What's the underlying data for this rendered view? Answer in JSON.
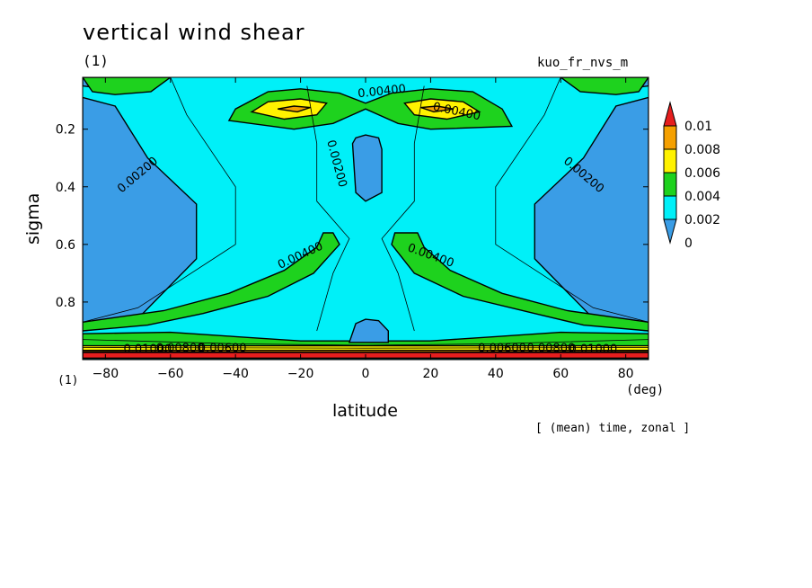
{
  "title": "vertical wind shear",
  "unit_top": "(1)",
  "experiment": "kuo_fr_nvs_m",
  "unit_bottom": "(1)",
  "x_unit": "(deg)",
  "footer_note": "[ (mean) time, zonal ]",
  "chart_data": {
    "type": "heatmap",
    "title": "vertical wind shear",
    "xlabel": "latitude",
    "ylabel": "sigma",
    "xlim": [
      -87,
      87
    ],
    "ylim": [
      1.0,
      0.02
    ],
    "x_ticks": [
      -80,
      -60,
      -40,
      -20,
      0,
      20,
      40,
      60,
      80
    ],
    "x_tick_labels": [
      "−80",
      "−60",
      "−40",
      "−20",
      "0",
      "20",
      "40",
      "60",
      "80"
    ],
    "y_ticks": [
      0.2,
      0.4,
      0.6,
      0.8
    ],
    "y_tick_labels": [
      "0.2",
      "0.4",
      "0.6",
      "0.8"
    ],
    "levels": [
      0,
      0.002,
      0.004,
      0.006,
      0.008,
      0.01
    ],
    "colorbar_labels": [
      "0.01",
      "0.008",
      "0.006",
      "0.004",
      "0.002",
      "0"
    ],
    "colors": {
      "below_0.002": "#3a9de6",
      "0.002_0.004": "#00f0f8",
      "0.004_0.006": "#1ed21e",
      "0.006_0.008": "#fff200",
      "0.008_0.01": "#f5a000",
      "above_0.01": "#e61e1e"
    },
    "contour_labels": [
      {
        "text": "0.00400",
        "lat": 5,
        "sigma": 0.07
      },
      {
        "text": "0.00400",
        "lat": 28,
        "sigma": 0.14
      },
      {
        "text": "0.00200",
        "lat": -9,
        "sigma": 0.32
      },
      {
        "text": "0.00200",
        "lat": -70,
        "sigma": 0.36
      },
      {
        "text": "0.00200",
        "lat": 67,
        "sigma": 0.36
      },
      {
        "text": "0.00400",
        "lat": -20,
        "sigma": 0.64
      },
      {
        "text": "0.00400",
        "lat": 20,
        "sigma": 0.64
      },
      {
        "text": "0.00600",
        "lat": -44,
        "sigma": 0.962
      },
      {
        "text": "0.00600",
        "lat": 42,
        "sigma": 0.962
      },
      {
        "text": "0.00800",
        "lat": -57,
        "sigma": 0.962
      },
      {
        "text": "0.00800",
        "lat": 57,
        "sigma": 0.962
      },
      {
        "text": "0.01000",
        "lat": -67,
        "sigma": 0.965
      },
      {
        "text": "0.01000",
        "lat": 70,
        "sigma": 0.965
      }
    ],
    "regions": [
      {
        "level": "0.004_0.006",
        "pts": [
          [
            -87,
            0.995
          ],
          [
            87,
            0.995
          ],
          [
            87,
            0.91
          ],
          [
            60,
            0.905
          ],
          [
            40,
            0.92
          ],
          [
            20,
            0.935
          ],
          [
            0,
            0.935
          ],
          [
            -20,
            0.935
          ],
          [
            -40,
            0.92
          ],
          [
            -60,
            0.905
          ],
          [
            -87,
            0.91
          ]
        ]
      },
      {
        "level": "0.006_0.008",
        "pts": [
          [
            -87,
            0.995
          ],
          [
            87,
            0.995
          ],
          [
            87,
            0.952
          ],
          [
            -87,
            0.952
          ]
        ]
      },
      {
        "level": "0.008_0.01",
        "pts": [
          [
            -87,
            0.995
          ],
          [
            87,
            0.995
          ],
          [
            87,
            0.968
          ],
          [
            -87,
            0.968
          ]
        ]
      },
      {
        "level": "above_0.01",
        "pts": [
          [
            -87,
            0.995
          ],
          [
            87,
            0.995
          ],
          [
            87,
            0.975
          ],
          [
            -87,
            0.975
          ]
        ]
      },
      {
        "level": "below_0.002",
        "pts": [
          [
            -87,
            0.09
          ],
          [
            -77,
            0.12
          ],
          [
            -67,
            0.3
          ],
          [
            -52,
            0.46
          ],
          [
            -52,
            0.65
          ],
          [
            -72,
            0.88
          ],
          [
            -87,
            0.9
          ]
        ]
      },
      {
        "level": "below_0.002",
        "pts": [
          [
            87,
            0.09
          ],
          [
            77,
            0.12
          ],
          [
            67,
            0.3
          ],
          [
            52,
            0.46
          ],
          [
            52,
            0.65
          ],
          [
            72,
            0.88
          ],
          [
            87,
            0.9
          ]
        ]
      },
      {
        "level": "below_0.002",
        "pts": [
          [
            -4,
            0.25
          ],
          [
            -3,
            0.23
          ],
          [
            0,
            0.22
          ],
          [
            4,
            0.23
          ],
          [
            5,
            0.27
          ],
          [
            5,
            0.42
          ],
          [
            0,
            0.45
          ],
          [
            -3,
            0.42
          ]
        ]
      },
      {
        "level": "below_0.002",
        "pts": [
          [
            -5,
            0.94
          ],
          [
            -3,
            0.875
          ],
          [
            0,
            0.86
          ],
          [
            4,
            0.865
          ],
          [
            7,
            0.9
          ],
          [
            7,
            0.94
          ]
        ]
      },
      {
        "level": "below_0.002",
        "pts": [
          [
            -87,
            0.02
          ],
          [
            -87,
            0.05
          ],
          [
            -80,
            0.06
          ],
          [
            -72,
            0.02
          ]
        ]
      },
      {
        "level": "below_0.002",
        "pts": [
          [
            87,
            0.02
          ],
          [
            87,
            0.05
          ],
          [
            80,
            0.06
          ],
          [
            72,
            0.02
          ]
        ]
      },
      {
        "level": "0.004_0.006",
        "pts": [
          [
            -87,
            0.02
          ],
          [
            -84,
            0.07
          ],
          [
            -77,
            0.08
          ],
          [
            -66,
            0.07
          ],
          [
            -60,
            0.02
          ]
        ]
      },
      {
        "level": "0.004_0.006",
        "pts": [
          [
            87,
            0.02
          ],
          [
            84,
            0.07
          ],
          [
            77,
            0.08
          ],
          [
            66,
            0.07
          ],
          [
            60,
            0.02
          ]
        ]
      },
      {
        "level": "0.004_0.006",
        "pts": [
          [
            -42,
            0.17
          ],
          [
            -40,
            0.13
          ],
          [
            -30,
            0.07
          ],
          [
            -20,
            0.06
          ],
          [
            -8,
            0.075
          ],
          [
            0,
            0.11
          ],
          [
            8,
            0.075
          ],
          [
            20,
            0.06
          ],
          [
            33,
            0.07
          ],
          [
            42,
            0.13
          ],
          [
            45,
            0.19
          ],
          [
            20,
            0.2
          ],
          [
            10,
            0.18
          ],
          [
            0,
            0.13
          ],
          [
            -10,
            0.18
          ],
          [
            -22,
            0.2
          ]
        ]
      },
      {
        "level": "0.006_0.008",
        "pts": [
          [
            -35,
            0.14
          ],
          [
            -30,
            0.105
          ],
          [
            -20,
            0.095
          ],
          [
            -12,
            0.11
          ],
          [
            -15,
            0.15
          ],
          [
            -25,
            0.165
          ]
        ]
      },
      {
        "level": "0.006_0.008",
        "pts": [
          [
            35,
            0.14
          ],
          [
            30,
            0.105
          ],
          [
            20,
            0.095
          ],
          [
            12,
            0.11
          ],
          [
            15,
            0.15
          ],
          [
            25,
            0.165
          ]
        ]
      },
      {
        "level": "0.008_0.01",
        "pts": [
          [
            -27,
            0.13
          ],
          [
            -22,
            0.12
          ],
          [
            -17,
            0.125
          ],
          [
            -21,
            0.14
          ]
        ]
      },
      {
        "level": "0.008_0.01",
        "pts": [
          [
            27,
            0.13
          ],
          [
            22,
            0.12
          ],
          [
            17,
            0.125
          ],
          [
            21,
            0.14
          ]
        ]
      },
      {
        "level": "0.004_0.006",
        "pts": [
          [
            -10,
            0.56
          ],
          [
            -8,
            0.6
          ],
          [
            -16,
            0.7
          ],
          [
            -30,
            0.78
          ],
          [
            -50,
            0.84
          ],
          [
            -67,
            0.88
          ],
          [
            -87,
            0.9
          ],
          [
            -87,
            0.87
          ],
          [
            -62,
            0.83
          ],
          [
            -42,
            0.77
          ],
          [
            -25,
            0.69
          ],
          [
            -15,
            0.61
          ],
          [
            -13,
            0.56
          ]
        ]
      },
      {
        "level": "0.004_0.006",
        "pts": [
          [
            9,
            0.56
          ],
          [
            8,
            0.6
          ],
          [
            15,
            0.7
          ],
          [
            30,
            0.78
          ],
          [
            52,
            0.84
          ],
          [
            67,
            0.88
          ],
          [
            87,
            0.9
          ],
          [
            87,
            0.87
          ],
          [
            62,
            0.83
          ],
          [
            42,
            0.77
          ],
          [
            26,
            0.69
          ],
          [
            18,
            0.61
          ],
          [
            16,
            0.56
          ]
        ]
      }
    ],
    "contour_lines": [
      [
        [
          -60,
          0.02
        ],
        [
          -55,
          0.15
        ],
        [
          -40,
          0.4
        ],
        [
          -40,
          0.6
        ],
        [
          -70,
          0.82
        ],
        [
          -87,
          0.87
        ]
      ],
      [
        [
          60,
          0.02
        ],
        [
          55,
          0.15
        ],
        [
          40,
          0.4
        ],
        [
          40,
          0.6
        ],
        [
          70,
          0.82
        ],
        [
          87,
          0.87
        ]
      ],
      [
        [
          -18,
          0.05
        ],
        [
          -15,
          0.25
        ],
        [
          -15,
          0.45
        ],
        [
          -5,
          0.58
        ],
        [
          -10,
          0.7
        ],
        [
          -15,
          0.9
        ]
      ],
      [
        [
          18,
          0.05
        ],
        [
          15,
          0.25
        ],
        [
          15,
          0.45
        ],
        [
          5,
          0.58
        ],
        [
          10,
          0.7
        ],
        [
          15,
          0.9
        ]
      ],
      [
        [
          -87,
          0.93
        ],
        [
          -40,
          0.945
        ],
        [
          0,
          0.95
        ],
        [
          40,
          0.945
        ],
        [
          87,
          0.93
        ]
      ],
      [
        [
          -87,
          0.958
        ],
        [
          0,
          0.96
        ],
        [
          87,
          0.958
        ]
      ],
      [
        [
          -87,
          0.972
        ],
        [
          0,
          0.974
        ],
        [
          87,
          0.972
        ]
      ]
    ]
  }
}
